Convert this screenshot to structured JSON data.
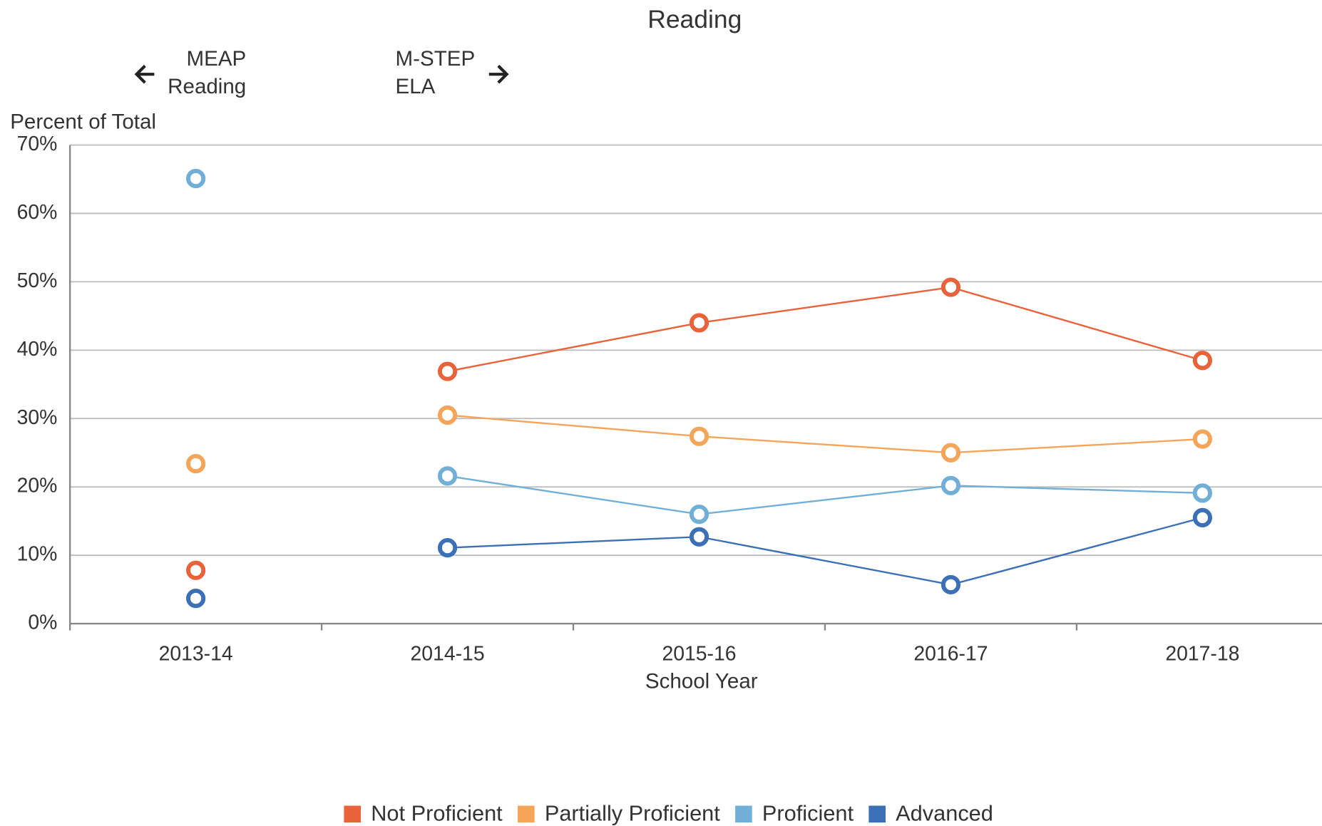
{
  "chart_data": {
    "type": "line",
    "title": "Reading",
    "y_label": "Percent of Total",
    "x_label": "School Year",
    "annotations": [
      {
        "lines": [
          "MEAP",
          "Reading"
        ],
        "arrow": "left"
      },
      {
        "lines": [
          "M-STEP",
          "ELA"
        ],
        "arrow": "right"
      }
    ],
    "categories": [
      "2013-14",
      "2014-15",
      "2015-16",
      "2016-17",
      "2017-18"
    ],
    "break_after_index": 0,
    "series": [
      {
        "name": "Not Proficient",
        "color": "#e8623a",
        "values": [
          7.8,
          36.9,
          44.0,
          49.2,
          38.5
        ]
      },
      {
        "name": "Partially Proficient",
        "color": "#f5a55a",
        "values": [
          23.4,
          30.5,
          27.4,
          25.0,
          27.0
        ]
      },
      {
        "name": "Proficient",
        "color": "#72afd6",
        "values": [
          65.1,
          21.6,
          16.0,
          20.2,
          19.1
        ]
      },
      {
        "name": "Advanced",
        "color": "#3b6fb6",
        "values": [
          3.7,
          11.1,
          12.7,
          5.7,
          15.5
        ]
      }
    ],
    "ylim": [
      0,
      70
    ],
    "yticks": [
      {
        "value": 0,
        "label": "0%"
      },
      {
        "value": 10,
        "label": "10%"
      },
      {
        "value": 20,
        "label": "20%"
      },
      {
        "value": 30,
        "label": "30%"
      },
      {
        "value": 40,
        "label": "40%"
      },
      {
        "value": 50,
        "label": "50%"
      },
      {
        "value": 60,
        "label": "60%"
      },
      {
        "value": 70,
        "label": "70%"
      }
    ],
    "grid": true,
    "legend": "bottom"
  }
}
